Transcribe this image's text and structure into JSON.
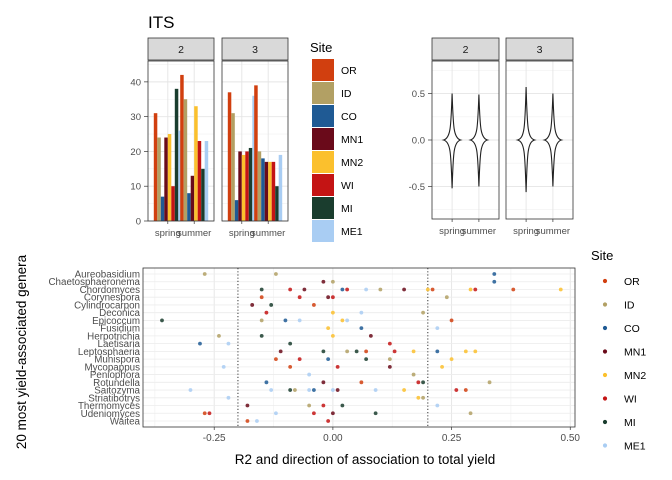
{
  "title": "ITS",
  "colors": {
    "OR": "#d13f0f",
    "ID": "#b2a064",
    "CO": "#1f5a94",
    "MN1": "#6a0a1a",
    "MN2": "#fbc02d",
    "WI": "#c41414",
    "MI": "#1a3d2e",
    "ME1": "#a9cdf3"
  },
  "top_left": {
    "panels": [
      "2",
      "3"
    ],
    "x_ticks": [
      "spring",
      "summer"
    ],
    "y_ticks": [
      "0",
      "10",
      "20",
      "30",
      "40"
    ],
    "ylim": [
      0,
      46
    ]
  },
  "legend_top": {
    "title": "Site",
    "items": [
      "OR",
      "ID",
      "CO",
      "MN1",
      "MN2",
      "WI",
      "MI",
      "ME1"
    ]
  },
  "top_right": {
    "panels": [
      "2",
      "3"
    ],
    "x_ticks": [
      "spring",
      "summer"
    ],
    "y_ticks": [
      "0.5",
      "0.0",
      "-0.5"
    ],
    "ylim": [
      -0.85,
      0.85
    ]
  },
  "bottom": {
    "ylabel": "20 most yield-associated genera",
    "xlabel": "R2 and direction of association to total yield",
    "x_ticks": [
      "-0.25",
      "0.00",
      "0.25",
      "0.50"
    ],
    "xlim": [
      -0.4,
      0.51
    ],
    "genera": [
      "Aureobasidium",
      "Chaetosphaeronema",
      "Chordomyces",
      "Corynespora",
      "Cylindrocarpon",
      "Deconica",
      "Epicoccum",
      "Fusidium",
      "Herpotrichia",
      "Laetisaria",
      "Leptosphaeria",
      "Munispora",
      "Mycopappus",
      "Peniophora",
      "Rotundella",
      "Saitozyma",
      "Striatibotrys",
      "Thermomyces",
      "Udeniomyces",
      "Waitea"
    ],
    "vlines": [
      -0.2,
      0.2
    ]
  },
  "legend_bottom": {
    "title": "Site",
    "items": [
      "OR",
      "ID",
      "CO",
      "MN1",
      "MN2",
      "WI",
      "MI",
      "ME1"
    ]
  },
  "chart_data": [
    {
      "type": "bar",
      "facets": [
        "2",
        "3"
      ],
      "categories": [
        "spring",
        "summer"
      ],
      "ylim": [
        0,
        46
      ],
      "series": [
        {
          "name": "OR",
          "values": {
            "2": [
              31,
              42
            ],
            "3": [
              37,
              39
            ]
          }
        },
        {
          "name": "ID",
          "values": {
            "2": [
              24,
              35
            ],
            "3": [
              31,
              20
            ]
          }
        },
        {
          "name": "CO",
          "values": {
            "2": [
              7,
              8
            ],
            "3": [
              6,
              18
            ]
          }
        },
        {
          "name": "MN1",
          "values": {
            "2": [
              24,
              13
            ],
            "3": [
              20,
              17
            ]
          }
        },
        {
          "name": "MN2",
          "values": {
            "2": [
              25,
              33
            ],
            "3": [
              19,
              17
            ]
          }
        },
        {
          "name": "WI",
          "values": {
            "2": [
              10,
              23
            ],
            "3": [
              20,
              17
            ]
          }
        },
        {
          "name": "MI",
          "values": {
            "2": [
              38,
              15
            ],
            "3": [
              21,
              10
            ]
          }
        },
        {
          "name": "ME1",
          "values": {
            "2": [
              26,
              23
            ],
            "3": [
              36,
              19
            ]
          }
        }
      ]
    },
    {
      "type": "violin",
      "facets": [
        "2",
        "3"
      ],
      "categories": [
        "spring",
        "summer"
      ],
      "ylim": [
        -0.85,
        0.85
      ],
      "ranges": {
        "2": [
          [
            -0.52,
            0.5
          ],
          [
            -0.5,
            0.49
          ]
        ],
        "3": [
          [
            -0.56,
            0.57
          ],
          [
            -0.5,
            0.5
          ]
        ]
      }
    },
    {
      "type": "scatter",
      "categories": [
        "Aureobasidium",
        "Chaetosphaeronema",
        "Chordomyces",
        "Corynespora",
        "Cylindrocarpon",
        "Deconica",
        "Epicoccum",
        "Fusidium",
        "Herpotrichia",
        "Laetisaria",
        "Leptosphaeria",
        "Munispora",
        "Mycopappus",
        "Peniophora",
        "Rotundella",
        "Saitozyma",
        "Striatibotrys",
        "Thermomyces",
        "Udeniomyces",
        "Waitea"
      ],
      "xlim": [
        -0.4,
        0.51
      ],
      "series": [
        {
          "name": "OR",
          "points": [
            [
              "Chordomyces",
              0.21
            ],
            [
              "Chordomyces",
              0.38
            ],
            [
              "Corynespora",
              -0.15
            ],
            [
              "Cylindrocarpon",
              -0.04
            ],
            [
              "Epicoccum",
              0.25
            ],
            [
              "Leptosphaeria",
              0.07
            ],
            [
              "Mycopappus",
              -0.09
            ],
            [
              "Saitozyma",
              0.28
            ],
            [
              "Udeniomyces",
              -0.27
            ],
            [
              "Waitea",
              -0.18
            ],
            [
              "Munispora",
              -0.12
            ],
            [
              "Rotundella",
              0.06
            ]
          ]
        },
        {
          "name": "ID",
          "points": [
            [
              "Aureobasidium",
              -0.27
            ],
            [
              "Aureobasidium",
              -0.12
            ],
            [
              "Chaetosphaeronema",
              0.0
            ],
            [
              "Chordomyces",
              0.1
            ],
            [
              "Corynespora",
              0.24
            ],
            [
              "Deconica",
              0.19
            ],
            [
              "Epicoccum",
              -0.15
            ],
            [
              "Herpotrichia",
              -0.24
            ],
            [
              "Leptosphaeria",
              0.03
            ],
            [
              "Munispora",
              0.12
            ],
            [
              "Peniophora",
              0.17
            ],
            [
              "Rotundella",
              0.33
            ],
            [
              "Saitozyma",
              -0.08
            ],
            [
              "Striatibotrys",
              0.19
            ],
            [
              "Udeniomyces",
              0.29
            ],
            [
              "Thermomyces",
              -0.05
            ]
          ]
        },
        {
          "name": "CO",
          "points": [
            [
              "Aureobasidium",
              0.34
            ],
            [
              "Chaetosphaeronema",
              0.34
            ],
            [
              "Chordomyces",
              0.02
            ],
            [
              "Epicoccum",
              -0.1
            ],
            [
              "Laetisaria",
              -0.28
            ],
            [
              "Leptosphaeria",
              0.22
            ],
            [
              "Munispora",
              -0.01
            ],
            [
              "Rotundella",
              -0.14
            ],
            [
              "Saitozyma",
              -0.04
            ],
            [
              "Fusidium",
              0.06
            ]
          ]
        },
        {
          "name": "MN1",
          "points": [
            [
              "Chaetosphaeronema",
              -0.02
            ],
            [
              "Chordomyces",
              -0.06
            ],
            [
              "Chordomyces",
              0.15
            ],
            [
              "Corynespora",
              -0.01
            ],
            [
              "Cylindrocarpon",
              -0.17
            ],
            [
              "Herpotrichia",
              0.08
            ],
            [
              "Leptosphaeria",
              -0.11
            ],
            [
              "Mycopappus",
              0.12
            ],
            [
              "Saitozyma",
              0.01
            ],
            [
              "Thermomyces",
              -0.18
            ],
            [
              "Udeniomyces",
              0.0
            ],
            [
              "Rotundella",
              -0.02
            ]
          ]
        },
        {
          "name": "MN2",
          "points": [
            [
              "Chordomyces",
              0.48
            ],
            [
              "Chordomyces",
              0.29
            ],
            [
              "Chordomyces",
              0.2
            ],
            [
              "Deconica",
              0.0
            ],
            [
              "Epicoccum",
              0.02
            ],
            [
              "Fusidium",
              -0.01
            ],
            [
              "Leptosphaeria",
              0.28
            ],
            [
              "Leptosphaeria",
              0.3
            ],
            [
              "Leptosphaeria",
              0.17
            ],
            [
              "Munispora",
              0.25
            ],
            [
              "Mycopappus",
              0.23
            ],
            [
              "Saitozyma",
              0.15
            ],
            [
              "Striatibotrys",
              0.18
            ],
            [
              "Herpotrichia",
              0.0
            ]
          ]
        },
        {
          "name": "WI",
          "points": [
            [
              "Chordomyces",
              -0.09
            ],
            [
              "Chordomyces",
              0.03
            ],
            [
              "Chordomyces",
              0.3
            ],
            [
              "Corynespora",
              -0.07
            ],
            [
              "Corynespora",
              0.0
            ],
            [
              "Deconica",
              -0.14
            ],
            [
              "Laetisaria",
              0.12
            ],
            [
              "Leptosphaeria",
              0.13
            ],
            [
              "Saitozyma",
              0.26
            ],
            [
              "Thermomyces",
              -0.02
            ],
            [
              "Udeniomyces",
              -0.26
            ],
            [
              "Udeniomyces",
              -0.04
            ],
            [
              "Waitea",
              -0.01
            ],
            [
              "Munispora",
              -0.07
            ],
            [
              "Mycopappus",
              0.01
            ],
            [
              "Rotundella",
              0.18
            ]
          ]
        },
        {
          "name": "MI",
          "points": [
            [
              "Chordomyces",
              -0.15
            ],
            [
              "Cylindrocarpon",
              -0.13
            ],
            [
              "Epicoccum",
              -0.36
            ],
            [
              "Laetisaria",
              -0.09
            ],
            [
              "Leptosphaeria",
              0.05
            ],
            [
              "Leptosphaeria",
              -0.02
            ],
            [
              "Munispora",
              0.07
            ],
            [
              "Rotundella",
              0.19
            ],
            [
              "Saitozyma",
              -0.09
            ],
            [
              "Udeniomyces",
              0.09
            ],
            [
              "Thermomyces",
              0.02
            ],
            [
              "Herpotrichia",
              -0.15
            ]
          ]
        },
        {
          "name": "ME1",
          "points": [
            [
              "Chordomyces",
              0.07
            ],
            [
              "Deconica",
              0.06
            ],
            [
              "Epicoccum",
              -0.07
            ],
            [
              "Epicoccum",
              0.03
            ],
            [
              "Fusidium",
              0.22
            ],
            [
              "Laetisaria",
              -0.22
            ],
            [
              "Mycopappus",
              -0.23
            ],
            [
              "Peniophora",
              -0.05
            ],
            [
              "Saitozyma",
              -0.3
            ],
            [
              "Saitozyma",
              -0.13
            ],
            [
              "Saitozyma",
              -0.05
            ],
            [
              "Saitozyma",
              0.0
            ],
            [
              "Saitozyma",
              0.09
            ],
            [
              "Striatibotrys",
              -0.22
            ],
            [
              "Thermomyces",
              0.22
            ],
            [
              "Waitea",
              -0.16
            ],
            [
              "Udeniomyces",
              -0.12
            ]
          ]
        }
      ]
    }
  ]
}
